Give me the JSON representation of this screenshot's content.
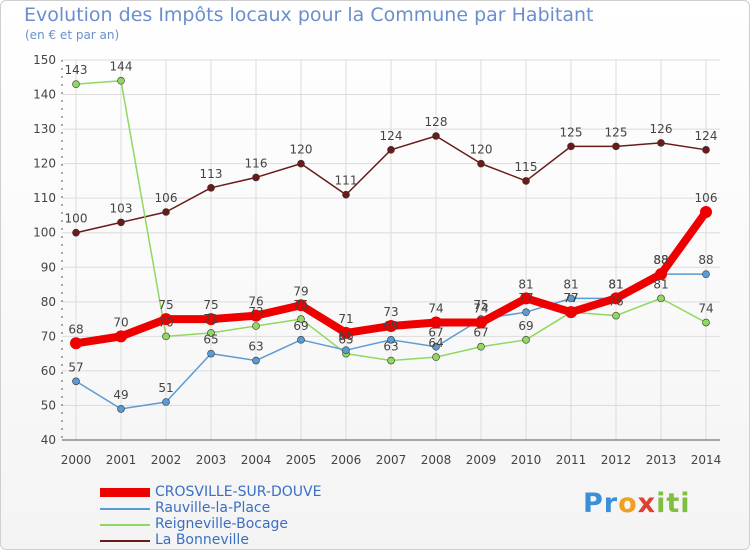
{
  "colors": {
    "title": "#6a8fcc",
    "grid": "#dcdcdc",
    "axis": "#555555"
  },
  "chart_data": {
    "type": "line",
    "title": "Evolution des Impôts locaux pour la Commune par Habitant",
    "subtitle": "(en € et par an)",
    "xlabel": "",
    "ylabel": "",
    "ylim": [
      40,
      150
    ],
    "yticks": [
      40,
      50,
      60,
      70,
      80,
      90,
      100,
      110,
      120,
      130,
      140,
      150
    ],
    "x": [
      "2000",
      "2001",
      "2002",
      "2003",
      "2004",
      "2005",
      "2006",
      "2007",
      "2008",
      "2009",
      "2010",
      "2011",
      "2012",
      "2013",
      "2014"
    ],
    "grid": true,
    "legend": "bottom-left",
    "series": [
      {
        "name": "La Bonneville",
        "color": "#6b1a1a",
        "values": [
          100,
          103,
          106,
          113,
          116,
          120,
          111,
          124,
          128,
          120,
          115,
          125,
          125,
          126,
          124
        ]
      },
      {
        "name": "Reigneville-Bocage",
        "color": "#90d860",
        "values": [
          143,
          144,
          70,
          71,
          73,
          75,
          65,
          63,
          64,
          67,
          69,
          77,
          76,
          81,
          74
        ]
      },
      {
        "name": "Rauville-la-Place",
        "color": "#5b9bd5",
        "values": [
          57,
          49,
          51,
          65,
          63,
          69,
          66,
          69,
          67,
          75,
          77,
          81,
          81,
          88,
          88
        ]
      },
      {
        "name": "CROSVILLE-SUR-DOUVE",
        "color": "#ee0000",
        "values": [
          68,
          70,
          75,
          75,
          76,
          79,
          71,
          73,
          74,
          74,
          81,
          77,
          81,
          88,
          106
        ]
      }
    ]
  },
  "legend": {
    "items": [
      "CROSVILLE-SUR-DOUVE",
      "Rauville-la-Place",
      "Reigneville-Bocage",
      "La Bonneville"
    ]
  },
  "logo": {
    "text": "Proxiti"
  }
}
